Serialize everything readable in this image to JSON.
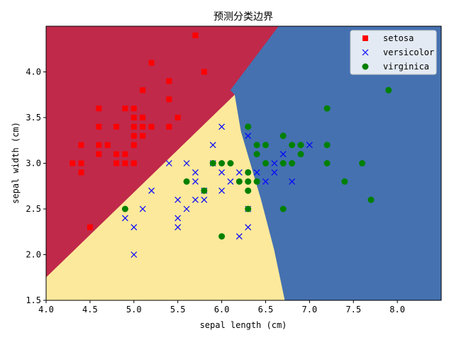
{
  "chart_data": {
    "type": "scatter",
    "title": "预测分类边界",
    "xlabel": "sepal length (cm)",
    "ylabel": "sepal width (cm)",
    "xlim": [
      4.0,
      8.5
    ],
    "ylim": [
      1.5,
      4.5
    ],
    "xticks": [
      4.0,
      4.5,
      5.0,
      5.5,
      6.0,
      6.5,
      7.0,
      7.5,
      8.0
    ],
    "yticks": [
      1.5,
      2.0,
      2.5,
      3.0,
      3.5,
      4.0
    ],
    "xtick_labels": [
      "4.0",
      "4.5",
      "5.0",
      "5.5",
      "6.0",
      "6.5",
      "7.0",
      "7.5",
      "8.0"
    ],
    "ytick_labels": [
      "1.5",
      "2.0",
      "2.5",
      "3.0",
      "3.5",
      "4.0"
    ],
    "grid": false,
    "legend_position": "top-right",
    "background_regions": [
      {
        "class": "setosa",
        "color": "#c0294a",
        "polygon": [
          [
            4.0,
            1.75
          ],
          [
            6.15,
            3.75
          ],
          [
            6.1,
            3.8
          ],
          [
            6.65,
            4.5
          ],
          [
            4.0,
            4.5
          ]
        ]
      },
      {
        "class": "versicolor",
        "color": "#fde99b",
        "polygon": [
          [
            4.0,
            1.5
          ],
          [
            6.72,
            1.5
          ],
          [
            6.6,
            2.05
          ],
          [
            6.45,
            2.6
          ],
          [
            6.22,
            3.35
          ],
          [
            6.15,
            3.75
          ],
          [
            4.0,
            1.75
          ]
        ]
      },
      {
        "class": "virginica",
        "color": "#4571b0",
        "polygon": [
          [
            6.72,
            1.5
          ],
          [
            8.5,
            1.5
          ],
          [
            8.5,
            4.5
          ],
          [
            6.65,
            4.5
          ],
          [
            6.1,
            3.8
          ],
          [
            6.15,
            3.75
          ],
          [
            6.22,
            3.35
          ],
          [
            6.45,
            2.6
          ],
          [
            6.6,
            2.05
          ]
        ]
      }
    ],
    "series": [
      {
        "name": "setosa",
        "marker": "square",
        "color": "#ff0000",
        "points": [
          [
            4.3,
            3.0
          ],
          [
            4.4,
            2.9
          ],
          [
            4.4,
            3.0
          ],
          [
            4.4,
            3.2
          ],
          [
            4.5,
            2.3
          ],
          [
            4.6,
            3.1
          ],
          [
            4.6,
            3.2
          ],
          [
            4.6,
            3.4
          ],
          [
            4.6,
            3.6
          ],
          [
            4.7,
            3.2
          ],
          [
            4.8,
            3.0
          ],
          [
            4.8,
            3.1
          ],
          [
            4.8,
            3.4
          ],
          [
            4.9,
            3.0
          ],
          [
            4.9,
            3.1
          ],
          [
            4.9,
            3.6
          ],
          [
            5.0,
            3.0
          ],
          [
            5.0,
            3.2
          ],
          [
            5.0,
            3.3
          ],
          [
            5.0,
            3.4
          ],
          [
            5.0,
            3.5
          ],
          [
            5.0,
            3.6
          ],
          [
            5.1,
            3.3
          ],
          [
            5.1,
            3.4
          ],
          [
            5.1,
            3.5
          ],
          [
            5.1,
            3.8
          ],
          [
            5.2,
            3.4
          ],
          [
            5.2,
            4.1
          ],
          [
            5.4,
            3.4
          ],
          [
            5.4,
            3.7
          ],
          [
            5.4,
            3.9
          ],
          [
            5.5,
            3.5
          ],
          [
            5.7,
            4.4
          ],
          [
            5.8,
            4.0
          ]
        ]
      },
      {
        "name": "versicolor",
        "marker": "x",
        "color": "#0000ff",
        "points": [
          [
            4.9,
            2.4
          ],
          [
            5.0,
            2.0
          ],
          [
            5.0,
            2.3
          ],
          [
            5.1,
            2.5
          ],
          [
            5.2,
            2.7
          ],
          [
            5.4,
            3.0
          ],
          [
            5.5,
            2.3
          ],
          [
            5.5,
            2.4
          ],
          [
            5.5,
            2.6
          ],
          [
            5.6,
            2.5
          ],
          [
            5.6,
            3.0
          ],
          [
            5.7,
            2.6
          ],
          [
            5.7,
            2.8
          ],
          [
            5.7,
            2.9
          ],
          [
            5.8,
            2.6
          ],
          [
            5.8,
            2.7
          ],
          [
            5.9,
            3.0
          ],
          [
            5.9,
            3.2
          ],
          [
            6.0,
            2.7
          ],
          [
            6.0,
            2.9
          ],
          [
            6.0,
            3.4
          ],
          [
            6.1,
            2.8
          ],
          [
            6.2,
            2.2
          ],
          [
            6.2,
            2.9
          ],
          [
            6.3,
            2.3
          ],
          [
            6.3,
            2.5
          ],
          [
            6.3,
            3.3
          ],
          [
            6.4,
            2.9
          ],
          [
            6.5,
            2.8
          ],
          [
            6.6,
            2.9
          ],
          [
            6.6,
            3.0
          ],
          [
            6.7,
            3.1
          ],
          [
            6.8,
            2.8
          ],
          [
            7.0,
            3.2
          ]
        ]
      },
      {
        "name": "virginica",
        "marker": "circle",
        "color": "#008000",
        "points": [
          [
            4.9,
            2.5
          ],
          [
            5.6,
            2.8
          ],
          [
            5.8,
            2.7
          ],
          [
            5.9,
            3.0
          ],
          [
            6.0,
            2.2
          ],
          [
            6.0,
            3.0
          ],
          [
            6.1,
            3.0
          ],
          [
            6.2,
            2.8
          ],
          [
            6.3,
            2.5
          ],
          [
            6.3,
            2.7
          ],
          [
            6.3,
            2.8
          ],
          [
            6.3,
            2.9
          ],
          [
            6.3,
            3.4
          ],
          [
            6.4,
            2.8
          ],
          [
            6.4,
            3.1
          ],
          [
            6.4,
            3.2
          ],
          [
            6.5,
            3.0
          ],
          [
            6.5,
            3.2
          ],
          [
            6.7,
            2.5
          ],
          [
            6.7,
            3.0
          ],
          [
            6.7,
            3.3
          ],
          [
            6.8,
            3.0
          ],
          [
            6.8,
            3.2
          ],
          [
            6.9,
            3.1
          ],
          [
            6.9,
            3.2
          ],
          [
            7.2,
            3.0
          ],
          [
            7.2,
            3.2
          ],
          [
            7.2,
            3.6
          ],
          [
            7.4,
            2.8
          ],
          [
            7.6,
            3.0
          ],
          [
            7.7,
            2.6
          ],
          [
            7.9,
            3.8
          ]
        ]
      }
    ]
  }
}
